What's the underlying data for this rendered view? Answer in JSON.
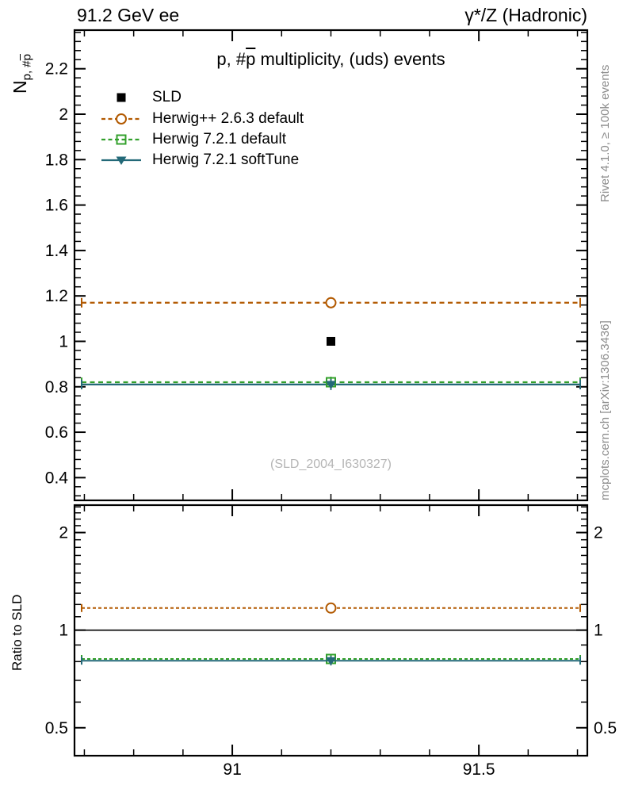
{
  "ui": {
    "header": {
      "left": "91.2 GeV ee",
      "right": "γ*/Z (Hadronic)"
    },
    "title": {
      "pre": "p, #",
      "bar": "p",
      "post": " multiplicity, (uds) events"
    },
    "y_axis_label": {
      "base": "N",
      "sub_pre": "p, #",
      "sub_bar": "p"
    },
    "ratio_axis_label": "Ratio to SLD",
    "watermark": "(SLD_2004_I630327)",
    "credits": {
      "right_top": "Rivet 4.1.0, ≥ 100k events",
      "right_bottom": "mcplots.cern.ch [arXiv:1306.3436]"
    },
    "legend": {
      "items": [
        {
          "label": "SLD"
        },
        {
          "label": "Herwig++ 2.6.3 default"
        },
        {
          "label": "Herwig 7.2.1 default"
        },
        {
          "label": "Herwig 7.2.1 softTune"
        }
      ]
    }
  },
  "chart_data": {
    "type": "line",
    "title": "p, #p̄ multiplicity, (uds) events",
    "beam": "91.2 GeV ee",
    "process": "γ*/Z (Hadronic)",
    "analysis": "SLD_2004_I630327",
    "x_point": 91.2,
    "xlim": [
      90.68,
      91.72
    ],
    "x_major_ticks": [
      91,
      91.5
    ],
    "x_major_tick_labels": [
      "91",
      "91.5"
    ],
    "x_minor_tick_step": 0.1,
    "main_panel": {
      "ylabel": "N_{p, #p̄}",
      "yscale": "linear",
      "ylim": [
        0.3,
        2.37
      ],
      "y_major_ticks": [
        0.4,
        0.6,
        0.8,
        1.0,
        1.2,
        1.4,
        1.6,
        1.8,
        2.0,
        2.2
      ],
      "y_major_tick_labels": [
        "0.4",
        "0.6",
        "0.8",
        "1",
        "1.2",
        "1.4",
        "1.6",
        "1.8",
        "2",
        "2.2"
      ],
      "y_minor_tick_step": 0.04,
      "series": [
        {
          "name": "SLD",
          "role": "data",
          "marker": "filled-square",
          "line": "none",
          "color": "#000000",
          "value": 1.0
        },
        {
          "name": "Herwig++ 2.6.3 default",
          "role": "mc",
          "marker": "open-circle",
          "line": "dashed",
          "color": "#b25900",
          "value": 1.17
        },
        {
          "name": "Herwig 7.2.1 default",
          "role": "mc",
          "marker": "open-square",
          "line": "dashed",
          "color": "#33a02c",
          "value": 0.82
        },
        {
          "name": "Herwig 7.2.1 softTune",
          "role": "mc",
          "marker": "filled-triangle-down",
          "line": "solid",
          "color": "#236978",
          "value": 0.81
        }
      ]
    },
    "ratio_panel": {
      "ylabel": "Ratio to SLD",
      "yscale": "log",
      "ylim": [
        0.41,
        2.43
      ],
      "y_labeled_ticks": [
        0.5,
        1,
        2
      ],
      "y_labeled_tick_labels": [
        "0.5",
        "1",
        "2"
      ],
      "reference_line": 1.0,
      "series": [
        {
          "name": "Herwig++ 2.6.3 default",
          "value": 1.17
        },
        {
          "name": "Herwig 7.2.1 default",
          "value": 0.815
        },
        {
          "name": "Herwig 7.2.1 softTune",
          "value": 0.805
        }
      ]
    }
  }
}
